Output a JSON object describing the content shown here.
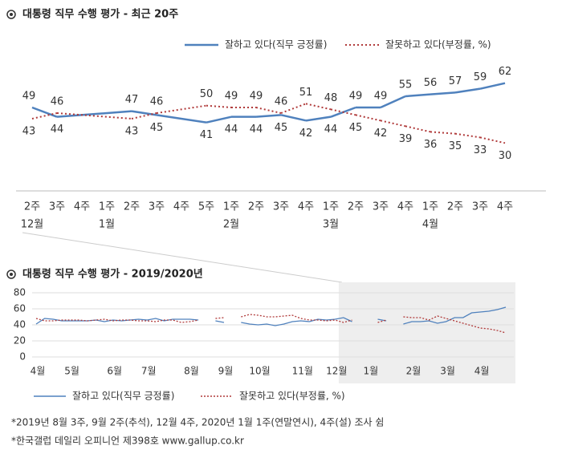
{
  "chart_data": [
    {
      "type": "line",
      "title": "대통령 직무 수행 평가 - 최근 20주",
      "categories": [
        "2주",
        "3주",
        "4주",
        "1주",
        "2주",
        "3주",
        "4주",
        "5주",
        "1주",
        "2주",
        "3주",
        "4주",
        "1주",
        "2주",
        "3주",
        "4주",
        "1주",
        "2주",
        "3주",
        "4주"
      ],
      "months": [
        "12월",
        null,
        null,
        "1월",
        null,
        null,
        null,
        null,
        "2월",
        null,
        null,
        null,
        "3월",
        null,
        null,
        null,
        "4월",
        null,
        null,
        null
      ],
      "ylim": [
        25,
        70
      ],
      "series": [
        {
          "name": "잘하고 있다(직무 긍정률)",
          "color": "#4f81bd",
          "style": "solid",
          "values": [
            49,
            44,
            null,
            null,
            47,
            45,
            null,
            41,
            44,
            44,
            45,
            42,
            44,
            49,
            49,
            55,
            56,
            57,
            59,
            62
          ]
        },
        {
          "name": "잘못하고 있다(부정률, %)",
          "color": "#b03a3a",
          "style": "dotted",
          "values": [
            43,
            46,
            null,
            null,
            43,
            46,
            null,
            50,
            49,
            49,
            46,
            51,
            48,
            45,
            42,
            39,
            36,
            35,
            33,
            30
          ]
        }
      ]
    },
    {
      "type": "line",
      "title": "대통령 직무 수행 평가 - 2019/2020년",
      "categories": [
        "4월",
        null,
        null,
        null,
        "5월",
        null,
        null,
        null,
        null,
        "6월",
        null,
        null,
        null,
        "7월",
        null,
        null,
        null,
        null,
        "8월",
        null,
        null,
        null,
        "9월",
        null,
        null,
        null,
        "10월",
        null,
        null,
        null,
        null,
        "11월",
        null,
        null,
        null,
        "12월",
        null,
        null,
        null,
        "1월",
        null,
        null,
        null,
        null,
        "2월",
        null,
        null,
        null,
        "3월",
        null,
        null,
        null,
        "4월",
        null,
        null,
        null
      ],
      "ylim": [
        0,
        80
      ],
      "yticks": [
        0,
        20,
        40,
        60,
        80
      ],
      "series": [
        {
          "name": "잘하고 있다(직무 긍정률)",
          "color": "#4f81bd",
          "style": "solid",
          "values": [
            41,
            48,
            47,
            45,
            45,
            45,
            45,
            46,
            44,
            46,
            45,
            46,
            47,
            46,
            48,
            45,
            47,
            47,
            47,
            46,
            null,
            45,
            43,
            null,
            43,
            41,
            40,
            41,
            39,
            41,
            44,
            45,
            44,
            47,
            46,
            47,
            49,
            44,
            null,
            null,
            47,
            45,
            null,
            41,
            44,
            44,
            45,
            42,
            44,
            49,
            49,
            55,
            56,
            57,
            59,
            62
          ]
        },
        {
          "name": "잘못하고 있다(부정률, %)",
          "color": "#b03a3a",
          "style": "dotted",
          "values": [
            48,
            45,
            45,
            46,
            46,
            46,
            45,
            46,
            47,
            45,
            46,
            46,
            45,
            45,
            44,
            46,
            46,
            43,
            44,
            46,
            null,
            48,
            49,
            null,
            50,
            53,
            52,
            50,
            50,
            51,
            52,
            48,
            46,
            46,
            45,
            46,
            43,
            46,
            null,
            null,
            43,
            46,
            null,
            50,
            49,
            49,
            46,
            51,
            48,
            45,
            42,
            39,
            36,
            35,
            33,
            30
          ]
        }
      ]
    }
  ],
  "notes": [
    "*2019년 8월 3주, 9월 2주(추석), 12월 4주, 2020년 1월 1주(연말연시), 4주(설) 조사 쉼",
    "*한국갤럽 데일리 오피니언 제398호 www.gallup.co.kr"
  ]
}
